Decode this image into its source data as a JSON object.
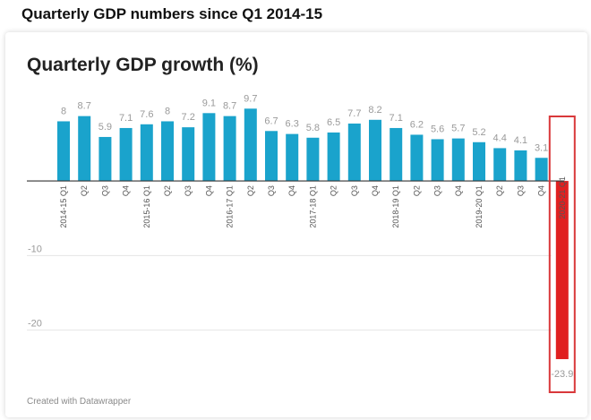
{
  "page": {
    "heading": "Quarterly GDP numbers since Q1 2014-15",
    "credit": "Created with Datawrapper"
  },
  "colors": {
    "bar": "#1aa3cc",
    "highlight_bar": "#e02020",
    "highlight_box": "#d9383a",
    "grid": "#e4e4e4",
    "label": "#9a9a9a",
    "axis": "#333333"
  },
  "chart_data": {
    "type": "bar",
    "title": "Quarterly GDP growth (%)",
    "xlabel": "",
    "ylabel": "",
    "ylim": [
      -27.5,
      12.5
    ],
    "yticks": [
      -10,
      -20
    ],
    "ytick_labels": [
      "-10",
      "-20"
    ],
    "grid": true,
    "categories": [
      "2014-15 Q1",
      "Q2",
      "Q3",
      "Q4",
      "2015-16 Q1",
      "Q2",
      "Q3",
      "Q4",
      "2016-17 Q1",
      "Q2",
      "Q3",
      "Q4",
      "2017-18 Q1",
      "Q2",
      "Q3",
      "Q4",
      "2018-19 Q1",
      "Q2",
      "Q3",
      "Q4",
      "2019-20 Q1",
      "Q2",
      "Q3",
      "Q4",
      "2020-21 Q1"
    ],
    "values": [
      8,
      8.7,
      5.9,
      7.1,
      7.6,
      8,
      7.2,
      9.1,
      8.7,
      9.7,
      6.7,
      6.3,
      5.8,
      6.5,
      7.7,
      8.2,
      7.1,
      6.2,
      5.6,
      5.7,
      5.2,
      4.4,
      4.1,
      3.1,
      -23.9
    ],
    "value_labels": [
      "8",
      "8.7",
      "5.9",
      "7.1",
      "7.6",
      "8",
      "7.2",
      "9.1",
      "8.7",
      "9.7",
      "6.7",
      "6.3",
      "5.8",
      "6.5",
      "7.7",
      "8.2",
      "7.1",
      "6.2",
      "5.6",
      "5.7",
      "5.2",
      "4.4",
      "4.1",
      "3.1",
      "-23.9"
    ],
    "highlight_index": 24
  }
}
